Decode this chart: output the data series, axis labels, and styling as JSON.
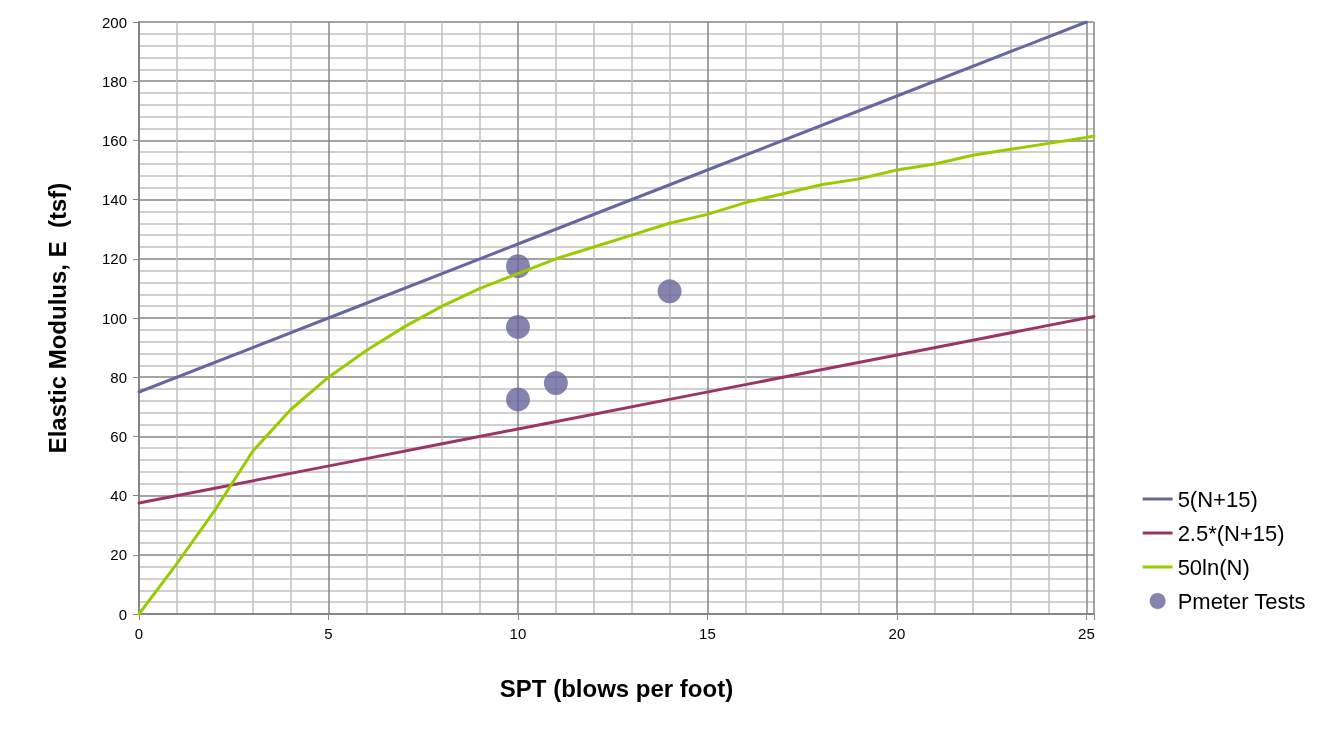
{
  "chart_data": {
    "type": "line",
    "xlabel": "SPT (blows per foot)",
    "ylabel": "Elastic Modulus, E  (tsf)",
    "xlim": [
      0,
      25.2
    ],
    "xticks": [
      0,
      5,
      10,
      15,
      20,
      25
    ],
    "ylim": [
      0,
      200
    ],
    "yticks": [
      0,
      20,
      40,
      60,
      80,
      100,
      120,
      140,
      160,
      180,
      200
    ],
    "grid": true,
    "legend": "bottom right",
    "marker": "none",
    "line_style": "solid",
    "series": [
      {
        "name": "5(N+15)",
        "color": "#6667a0",
        "x": [
          0,
          5,
          10,
          15,
          20,
          25
        ],
        "values": [
          75,
          100,
          125,
          150,
          175,
          200
        ]
      },
      {
        "name": "2.5*(N+15)",
        "color": "#9b3566",
        "x": [
          0,
          2,
          4,
          6,
          8,
          10,
          12,
          14,
          16,
          18,
          20,
          22,
          24,
          25.2
        ],
        "values": [
          37.5,
          42.5,
          47.5,
          52.5,
          57.5,
          62.5,
          67.5,
          72.5,
          77.5,
          82.5,
          87.5,
          92.5,
          97.5,
          100.5
        ]
      },
      {
        "name": "50ln(N)",
        "color": "#99cc00",
        "x": [
          0,
          1,
          2,
          3,
          4,
          5,
          6,
          7,
          8,
          9,
          10,
          11,
          12,
          13,
          14,
          15,
          16,
          17,
          18,
          19,
          20,
          21,
          22,
          23,
          24,
          25,
          25.2
        ],
        "values": [
          0,
          17,
          35,
          55,
          69,
          80,
          89,
          97,
          104,
          110,
          115,
          120,
          124,
          128,
          132,
          135,
          139,
          142,
          145,
          147,
          150,
          152,
          155,
          157,
          159,
          161,
          161.5
        ]
      },
      {
        "name": "Pmeter Tests",
        "type": "scatter",
        "marker": "circle",
        "color": "#65659a",
        "x": [
          10,
          10,
          10,
          11,
          14
        ],
        "values": [
          117.5,
          97,
          72.5,
          78,
          109
        ]
      }
    ]
  }
}
